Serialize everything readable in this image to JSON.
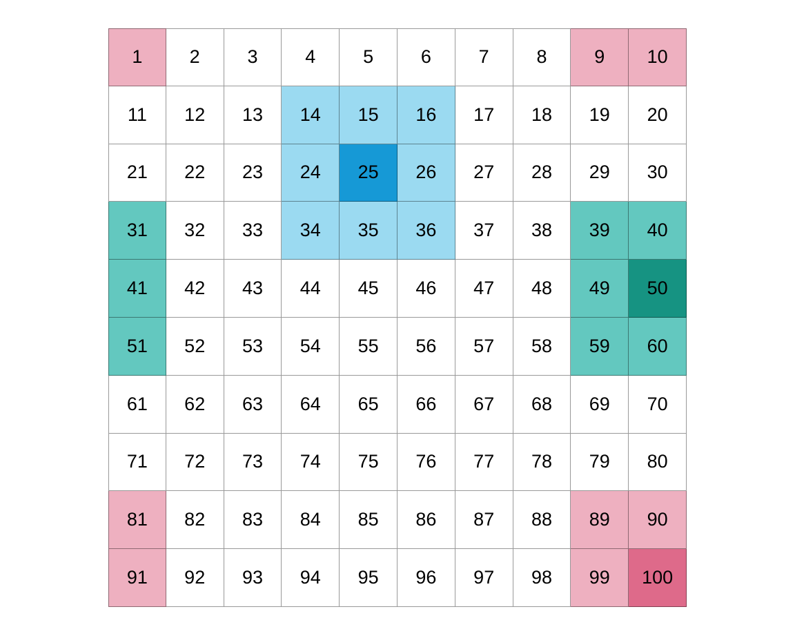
{
  "grid": {
    "rows": [
      [
        "1",
        "2",
        "3",
        "4",
        "5",
        "6",
        "7",
        "8",
        "9",
        "10"
      ],
      [
        "11",
        "12",
        "13",
        "14",
        "15",
        "16",
        "17",
        "18",
        "19",
        "20"
      ],
      [
        "21",
        "22",
        "23",
        "24",
        "25",
        "26",
        "27",
        "28",
        "29",
        "30"
      ],
      [
        "31",
        "32",
        "33",
        "34",
        "35",
        "36",
        "37",
        "38",
        "39",
        "40"
      ],
      [
        "41",
        "42",
        "43",
        "44",
        "45",
        "46",
        "47",
        "48",
        "49",
        "50"
      ],
      [
        "51",
        "52",
        "53",
        "54",
        "55",
        "56",
        "57",
        "58",
        "59",
        "60"
      ],
      [
        "61",
        "62",
        "63",
        "64",
        "65",
        "66",
        "67",
        "68",
        "69",
        "70"
      ],
      [
        "71",
        "72",
        "73",
        "74",
        "75",
        "76",
        "77",
        "78",
        "79",
        "80"
      ],
      [
        "81",
        "82",
        "83",
        "84",
        "85",
        "86",
        "87",
        "88",
        "89",
        "90"
      ],
      [
        "91",
        "92",
        "93",
        "94",
        "95",
        "96",
        "97",
        "98",
        "99",
        "100"
      ]
    ],
    "highlights": [
      {
        "color": "#EEB0C0",
        "cells": [
          "1",
          "9",
          "10",
          "81",
          "89",
          "90",
          "91",
          "99"
        ]
      },
      {
        "color": "#DE6A8A",
        "cells": [
          "100"
        ]
      },
      {
        "color": "#9BDAF1",
        "cells": [
          "14",
          "15",
          "16",
          "24",
          "26",
          "34",
          "35",
          "36"
        ]
      },
      {
        "color": "#1699D6",
        "cells": [
          "25"
        ]
      },
      {
        "color": "#63C8BF",
        "cells": [
          "31",
          "39",
          "40",
          "41",
          "49",
          "51",
          "59",
          "60"
        ]
      },
      {
        "color": "#169382",
        "cells": [
          "50"
        ]
      }
    ]
  }
}
